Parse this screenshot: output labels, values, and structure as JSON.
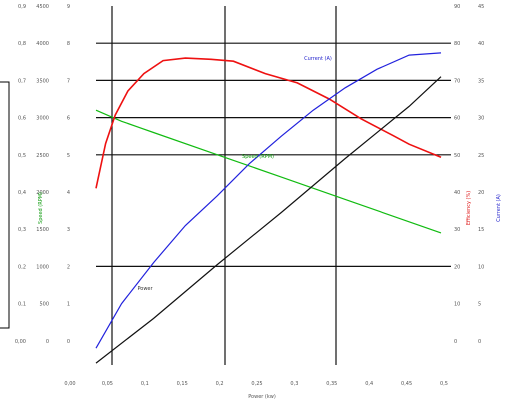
{
  "chart_data": {
    "type": "line",
    "title": "",
    "xlabel": "Power (kw)",
    "x_range": [
      0.02,
      1.1
    ],
    "x_ticks": [
      "0,00",
      "0,05",
      "0,1",
      "0,15",
      "0,2",
      "0,25",
      "0,3",
      "0,35",
      "0,4",
      "0,45",
      "0,5"
    ],
    "grid": "partial",
    "left_axes": [
      {
        "label": "Speed (RPM)",
        "color": "#0a9a0a",
        "ticks": [
          "0,00",
          "0,1",
          "0,2",
          "0,3",
          "0,4",
          "0,5",
          "0,6",
          "0,7",
          "0,8",
          "0,9"
        ]
      },
      {
        "label": "",
        "color": "#333333",
        "ticks": [
          "0",
          "500",
          "1000",
          "1500",
          "2000",
          "2500",
          "3000",
          "3500",
          "4000",
          "4500"
        ]
      },
      {
        "label": "",
        "color": "#333333",
        "ticks": [
          "0",
          "1",
          "2",
          "3",
          "4",
          "5",
          "6",
          "7",
          "8",
          "9"
        ]
      }
    ],
    "right_axes": [
      {
        "label": "Efficiency (%)",
        "color": "#dd1111",
        "ticks": [
          "0",
          "10",
          "20",
          "30",
          "40",
          "50",
          "60",
          "70",
          "80",
          "90"
        ]
      },
      {
        "label": "Current (A)",
        "color": "#2222cc",
        "ticks": [
          "0",
          "5",
          "10",
          "15",
          "20",
          "25",
          "30",
          "35",
          "40",
          "45"
        ]
      }
    ],
    "series": [
      {
        "name": "Speed",
        "color": "#11bb11",
        "x": [
          0.02,
          0.1,
          0.2,
          0.4,
          0.6,
          0.8,
          1.0,
          1.1
        ],
        "y": [
          0.72,
          0.69,
          0.66,
          0.6,
          0.54,
          0.48,
          0.42,
          0.39
        ]
      },
      {
        "name": "Efficiency",
        "color": "#ee1111",
        "x": [
          0.02,
          0.05,
          0.08,
          0.12,
          0.17,
          0.23,
          0.3,
          0.38,
          0.45,
          0.55,
          0.65,
          0.75,
          0.85,
          0.95,
          1.0,
          1.1
        ],
        "y": [
          51,
          63,
          71,
          77,
          82,
          85,
          86,
          86,
          85,
          82,
          79,
          75,
          70,
          65,
          63,
          59
        ]
      },
      {
        "name": "Current",
        "color": "#2222dd",
        "x": [
          0.02,
          0.1,
          0.2,
          0.3,
          0.4,
          0.5,
          0.6,
          0.7,
          0.8,
          0.9,
          1.0,
          1.1
        ],
        "y": [
          4,
          10,
          15.5,
          20.5,
          24.5,
          28.8,
          32.5,
          36,
          39,
          41.5,
          43.4,
          43.7
        ]
      },
      {
        "name": "",
        "color": "#111111",
        "x": [
          0.02,
          0.2,
          0.4,
          0.6,
          0.8,
          1.0,
          1.1
        ],
        "y": [
          0.4,
          1.6,
          3.05,
          4.45,
          5.9,
          7.3,
          8.1
        ]
      }
    ],
    "annotations": [
      {
        "text": "Speed (RPM)",
        "series": "Speed"
      },
      {
        "text": "Current (A)",
        "series": "Current"
      },
      {
        "text": "Power",
        "series": "Power"
      }
    ]
  }
}
